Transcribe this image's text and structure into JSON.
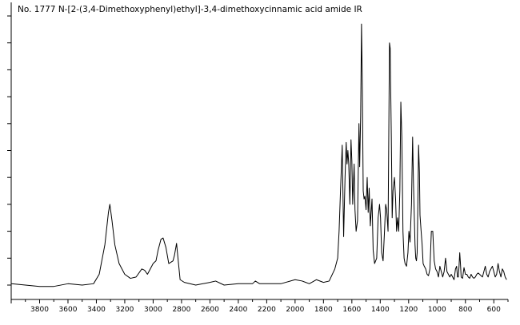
{
  "chart_data": {
    "type": "line",
    "title": "No. 1777 N-[2-(3,4-Dimethoxyphenyl)ethyl]-3,4-dimethoxycinnamic acid amide IR",
    "xlabel": "",
    "ylabel": "",
    "x_reversed": true,
    "xlim": [
      4000,
      500
    ],
    "ylim": [
      0,
      1.0
    ],
    "grid": false,
    "x_ticks": [
      3800,
      3600,
      3400,
      3200,
      3000,
      2800,
      2600,
      2400,
      2200,
      2000,
      1800,
      1600,
      1400,
      1200,
      1000,
      800,
      600
    ],
    "x_tick_labels": [
      "3800",
      "3600",
      "3400",
      "3200",
      "3000",
      "2800",
      "2600",
      "2400",
      "2200",
      "2000",
      "1800",
      "1600",
      "1400",
      "1200",
      "1000",
      "800",
      "600"
    ],
    "series": [
      {
        "color": "#000000",
        "points": [
          [
            4000,
            0.005
          ],
          [
            3900,
            0.0
          ],
          [
            3800,
            -0.005
          ],
          [
            3700,
            -0.005
          ],
          [
            3600,
            0.005
          ],
          [
            3500,
            0.0
          ],
          [
            3420,
            0.005
          ],
          [
            3380,
            0.04
          ],
          [
            3340,
            0.15
          ],
          [
            3315,
            0.27
          ],
          [
            3305,
            0.3
          ],
          [
            3290,
            0.24
          ],
          [
            3270,
            0.15
          ],
          [
            3240,
            0.08
          ],
          [
            3200,
            0.04
          ],
          [
            3160,
            0.025
          ],
          [
            3120,
            0.03
          ],
          [
            3080,
            0.06
          ],
          [
            3060,
            0.055
          ],
          [
            3040,
            0.04
          ],
          [
            3020,
            0.06
          ],
          [
            3000,
            0.08
          ],
          [
            2980,
            0.09
          ],
          [
            2965,
            0.13
          ],
          [
            2945,
            0.17
          ],
          [
            2930,
            0.175
          ],
          [
            2910,
            0.14
          ],
          [
            2890,
            0.08
          ],
          [
            2860,
            0.09
          ],
          [
            2850,
            0.11
          ],
          [
            2835,
            0.155
          ],
          [
            2825,
            0.1
          ],
          [
            2810,
            0.02
          ],
          [
            2780,
            0.01
          ],
          [
            2700,
            0.0
          ],
          [
            2600,
            0.01
          ],
          [
            2560,
            0.015
          ],
          [
            2500,
            0.0
          ],
          [
            2400,
            0.005
          ],
          [
            2300,
            0.005
          ],
          [
            2280,
            0.015
          ],
          [
            2250,
            0.005
          ],
          [
            2100,
            0.005
          ],
          [
            2000,
            0.02
          ],
          [
            1950,
            0.015
          ],
          [
            1900,
            0.005
          ],
          [
            1850,
            0.02
          ],
          [
            1800,
            0.01
          ],
          [
            1760,
            0.015
          ],
          [
            1720,
            0.06
          ],
          [
            1700,
            0.1
          ],
          [
            1690,
            0.2
          ],
          [
            1680,
            0.35
          ],
          [
            1668,
            0.52
          ],
          [
            1658,
            0.18
          ],
          [
            1648,
            0.4
          ],
          [
            1640,
            0.53
          ],
          [
            1634,
            0.45
          ],
          [
            1628,
            0.5
          ],
          [
            1622,
            0.45
          ],
          [
            1614,
            0.3
          ],
          [
            1606,
            0.54
          ],
          [
            1600,
            0.46
          ],
          [
            1594,
            0.3
          ],
          [
            1584,
            0.45
          ],
          [
            1578,
            0.28
          ],
          [
            1570,
            0.2
          ],
          [
            1560,
            0.24
          ],
          [
            1550,
            0.6
          ],
          [
            1545,
            0.44
          ],
          [
            1538,
            0.63
          ],
          [
            1532,
            0.97
          ],
          [
            1526,
            0.72
          ],
          [
            1520,
            0.35
          ],
          [
            1514,
            0.32
          ],
          [
            1508,
            0.33
          ],
          [
            1500,
            0.28
          ],
          [
            1492,
            0.4
          ],
          [
            1485,
            0.27
          ],
          [
            1478,
            0.36
          ],
          [
            1470,
            0.22
          ],
          [
            1458,
            0.32
          ],
          [
            1450,
            0.13
          ],
          [
            1440,
            0.08
          ],
          [
            1425,
            0.1
          ],
          [
            1415,
            0.25
          ],
          [
            1405,
            0.3
          ],
          [
            1398,
            0.25
          ],
          [
            1390,
            0.12
          ],
          [
            1380,
            0.09
          ],
          [
            1370,
            0.2
          ],
          [
            1362,
            0.3
          ],
          [
            1355,
            0.28
          ],
          [
            1345,
            0.2
          ],
          [
            1335,
            0.9
          ],
          [
            1330,
            0.88
          ],
          [
            1322,
            0.55
          ],
          [
            1316,
            0.25
          ],
          [
            1310,
            0.35
          ],
          [
            1300,
            0.4
          ],
          [
            1292,
            0.32
          ],
          [
            1285,
            0.2
          ],
          [
            1278,
            0.25
          ],
          [
            1270,
            0.2
          ],
          [
            1262,
            0.35
          ],
          [
            1255,
            0.68
          ],
          [
            1248,
            0.55
          ],
          [
            1240,
            0.2
          ],
          [
            1232,
            0.1
          ],
          [
            1225,
            0.08
          ],
          [
            1215,
            0.07
          ],
          [
            1205,
            0.12
          ],
          [
            1198,
            0.2
          ],
          [
            1190,
            0.16
          ],
          [
            1180,
            0.3
          ],
          [
            1172,
            0.55
          ],
          [
            1166,
            0.38
          ],
          [
            1160,
            0.25
          ],
          [
            1155,
            0.15
          ],
          [
            1150,
            0.1
          ],
          [
            1145,
            0.09
          ],
          [
            1140,
            0.12
          ],
          [
            1135,
            0.3
          ],
          [
            1130,
            0.52
          ],
          [
            1124,
            0.42
          ],
          [
            1120,
            0.26
          ],
          [
            1112,
            0.2
          ],
          [
            1105,
            0.15
          ],
          [
            1098,
            0.08
          ],
          [
            1090,
            0.07
          ],
          [
            1080,
            0.06
          ],
          [
            1070,
            0.04
          ],
          [
            1060,
            0.035
          ],
          [
            1050,
            0.06
          ],
          [
            1040,
            0.2
          ],
          [
            1030,
            0.2
          ],
          [
            1020,
            0.09
          ],
          [
            1010,
            0.06
          ],
          [
            1000,
            0.05
          ],
          [
            990,
            0.03
          ],
          [
            980,
            0.07
          ],
          [
            970,
            0.05
          ],
          [
            960,
            0.03
          ],
          [
            950,
            0.05
          ],
          [
            940,
            0.1
          ],
          [
            930,
            0.05
          ],
          [
            920,
            0.04
          ],
          [
            910,
            0.03
          ],
          [
            900,
            0.04
          ],
          [
            890,
            0.03
          ],
          [
            880,
            0.02
          ],
          [
            870,
            0.06
          ],
          [
            862,
            0.07
          ],
          [
            856,
            0.03
          ],
          [
            850,
            0.03
          ],
          [
            845,
            0.07
          ],
          [
            840,
            0.12
          ],
          [
            835,
            0.08
          ],
          [
            830,
            0.03
          ],
          [
            820,
            0.025
          ],
          [
            810,
            0.065
          ],
          [
            800,
            0.04
          ],
          [
            790,
            0.04
          ],
          [
            780,
            0.03
          ],
          [
            770,
            0.025
          ],
          [
            760,
            0.04
          ],
          [
            750,
            0.03
          ],
          [
            740,
            0.025
          ],
          [
            730,
            0.03
          ],
          [
            720,
            0.04
          ],
          [
            710,
            0.045
          ],
          [
            700,
            0.04
          ],
          [
            690,
            0.035
          ],
          [
            680,
            0.03
          ],
          [
            670,
            0.05
          ],
          [
            660,
            0.07
          ],
          [
            650,
            0.04
          ],
          [
            640,
            0.03
          ],
          [
            630,
            0.05
          ],
          [
            620,
            0.06
          ],
          [
            610,
            0.07
          ],
          [
            600,
            0.05
          ],
          [
            590,
            0.03
          ],
          [
            580,
            0.04
          ],
          [
            570,
            0.08
          ],
          [
            560,
            0.05
          ],
          [
            550,
            0.03
          ],
          [
            540,
            0.06
          ],
          [
            530,
            0.05
          ],
          [
            520,
            0.03
          ],
          [
            510,
            0.02
          ]
        ]
      }
    ]
  }
}
